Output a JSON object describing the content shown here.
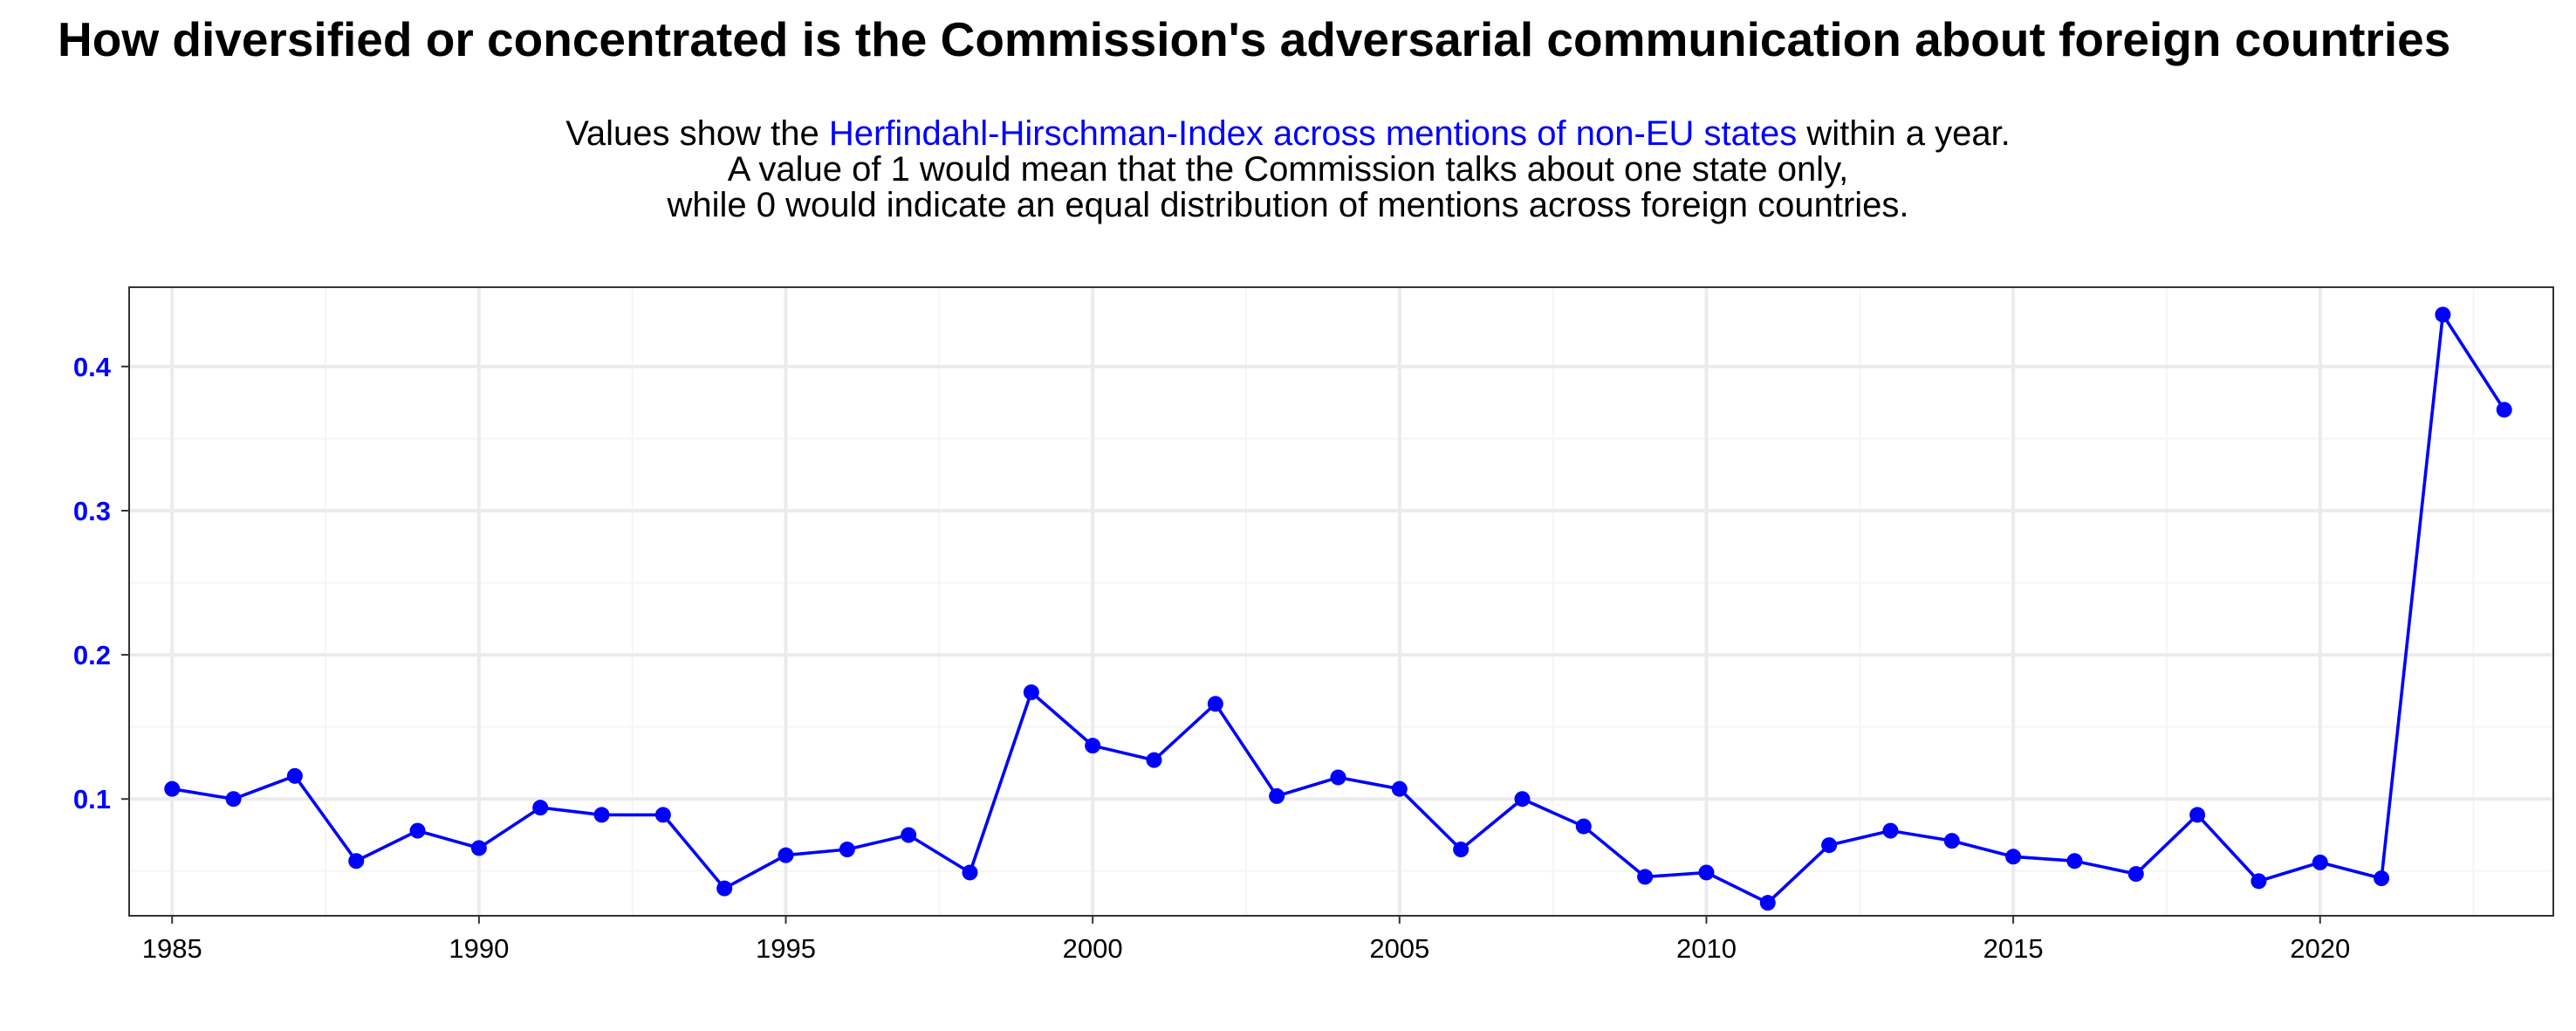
{
  "title": "How diversified or concentrated is the Commission's adversarial communication about foreign countries",
  "subtitle": {
    "line1_before": "Values show the ",
    "line1_highlight": "Herfindahl-Hirschman-Index across mentions of non-EU states",
    "line1_after": " within a year.",
    "line2": "A value of 1 would mean that the Commission talks about one state only,",
    "line3": "while 0 would indicate an equal distribution of mentions across foreign countries."
  },
  "colors": {
    "series": "#0000ff",
    "highlight": "#0000ff",
    "ytick": "#0000ff",
    "grid_major": "#ebebeb",
    "grid_minor": "#f5f5f5",
    "panel_border": "#333333"
  },
  "chart_data": {
    "type": "line",
    "title": "How diversified or concentrated is the Commission's adversarial communication about foreign countries",
    "xlabel": "",
    "ylabel": "",
    "xlim": [
      1984.3,
      2023.8
    ],
    "ylim": [
      0.019,
      0.455
    ],
    "x_ticks": [
      1985,
      1990,
      1995,
      2000,
      2005,
      2010,
      2015,
      2020
    ],
    "x_tick_labels": [
      "1985",
      "1990",
      "1995",
      "2000",
      "2005",
      "2010",
      "2015",
      "2020"
    ],
    "y_ticks": [
      0.1,
      0.2,
      0.3,
      0.4
    ],
    "y_tick_labels": [
      "0.1",
      "0.2",
      "0.3",
      "0.4"
    ],
    "grid": true,
    "markers": true,
    "series": [
      {
        "x": [
          1985,
          1986,
          1987,
          1988,
          1989,
          1990,
          1991,
          1992,
          1993,
          1994,
          1995,
          1996,
          1997,
          1998,
          1999,
          2000,
          2001,
          2002,
          2003,
          2004,
          2005,
          2006,
          2007,
          2008,
          2009,
          2010,
          2011,
          2012,
          2013,
          2014,
          2015,
          2016,
          2017,
          2018,
          2019,
          2020,
          2021,
          2022,
          2023
        ],
        "values": [
          0.107,
          0.1,
          0.116,
          0.057,
          0.078,
          0.066,
          0.094,
          0.089,
          0.089,
          0.038,
          0.061,
          0.065,
          0.075,
          0.049,
          0.174,
          0.137,
          0.127,
          0.166,
          0.102,
          0.115,
          0.107,
          0.065,
          0.1,
          0.081,
          0.046,
          0.049,
          0.028,
          0.068,
          0.078,
          0.071,
          0.06,
          0.057,
          0.048,
          0.089,
          0.043,
          0.056,
          0.045,
          0.436,
          0.37
        ]
      }
    ]
  }
}
